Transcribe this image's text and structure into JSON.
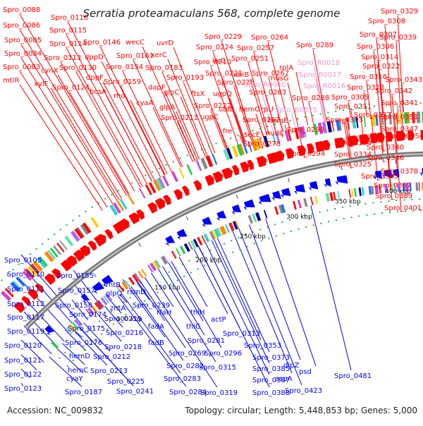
{
  "title": "Serratia proteamaculans 568, complete genome",
  "footer": {
    "accession": "Accession: NC_009832",
    "summary": "Topology: circular; Length: 5,448,853 bp; Genes: 5,000"
  },
  "colors": {
    "forward": "#ff0000",
    "reverse": "#0000ee",
    "rna": "#ee99cc",
    "backbone": "#999999",
    "gc_tick": "#22aa44"
  },
  "scale_ticks": [
    "100 kbp",
    "150 kbp",
    "200 kbp",
    "250 kbp",
    "300 kbp",
    "350 kbp",
    "400 kbp",
    "450 kbp",
    "500 kbp",
    "550 kbp"
  ],
  "top_labels": [
    {
      "t": "Spro_0088",
      "kind": "f"
    },
    {
      "t": "Spro_0116",
      "kind": "f"
    },
    {
      "t": "Spro_0086",
      "kind": "f"
    },
    {
      "t": "Spro_0115",
      "kind": "f"
    },
    {
      "t": "Spro_0085",
      "kind": "f"
    },
    {
      "t": "Spro_0114",
      "kind": "f"
    },
    {
      "t": "Spro_0146",
      "kind": "f"
    },
    {
      "t": "wecC",
      "kind": "f"
    },
    {
      "t": "uvrD",
      "kind": "f"
    },
    {
      "t": "Spro_0084",
      "kind": "f"
    },
    {
      "t": "Spro_0113",
      "kind": "f"
    },
    {
      "t": "dppD",
      "kind": "f"
    },
    {
      "t": "Spro_0161",
      "kind": "f"
    },
    {
      "t": "xerC",
      "kind": "f"
    },
    {
      "t": "Spro_0083",
      "kind": "f"
    },
    {
      "t": "cynX",
      "kind": "f"
    },
    {
      "t": "Spro_0130",
      "kind": "f"
    },
    {
      "t": "dppF",
      "kind": "f"
    },
    {
      "t": "Spro_0154",
      "kind": "f"
    },
    {
      "t": "Spro_0183",
      "kind": "f"
    },
    {
      "t": "mtlR",
      "kind": "f"
    },
    {
      "t": "xylF",
      "kind": "f"
    },
    {
      "t": "Spro_0124",
      "kind": "f"
    },
    {
      "t": "bcsA",
      "kind": "f"
    },
    {
      "t": "Spro_0159",
      "kind": "f"
    },
    {
      "t": "dapF",
      "kind": "f"
    },
    {
      "t": "rho",
      "kind": "f"
    },
    {
      "t": "cyaA",
      "kind": "f"
    },
    {
      "t": "Spro_0193",
      "kind": "f"
    },
    {
      "t": "glpC",
      "kind": "f"
    },
    {
      "t": "glpA",
      "kind": "f"
    },
    {
      "t": "Spro_0211",
      "kind": "f"
    },
    {
      "t": "Spro_0229",
      "kind": "f"
    },
    {
      "t": "Spro_0264",
      "kind": "f"
    },
    {
      "t": "Spro_0224",
      "kind": "f"
    },
    {
      "t": "Spro_0257",
      "kind": "f"
    },
    {
      "t": "Spro_0251",
      "kind": "f"
    },
    {
      "t": "Spro_0210",
      "kind": "f"
    },
    {
      "t": "livG",
      "kind": "f"
    },
    {
      "t": "Spro_0221",
      "kind": "f"
    },
    {
      "t": "Spro_0228",
      "kind": "f"
    },
    {
      "t": "ftsX",
      "kind": "f"
    },
    {
      "t": "ugpQ",
      "kind": "f"
    },
    {
      "t": "Spro_0222",
      "kind": "f"
    },
    {
      "t": "ugpC",
      "kind": "f"
    },
    {
      "t": "ubiB",
      "kind": "f"
    },
    {
      "t": "Spro_0267",
      "kind": "f"
    },
    {
      "t": "Spro_0263",
      "kind": "f"
    },
    {
      "t": "ubiE",
      "kind": "f"
    },
    {
      "t": "hemG",
      "kind": "f"
    },
    {
      "t": "rpU",
      "kind": "f"
    },
    {
      "t": "fre",
      "kind": "f"
    },
    {
      "t": "Spro_0262",
      "kind": "f"
    },
    {
      "t": "secE",
      "kind": "f"
    },
    {
      "t": "Spro_0278",
      "kind": "f"
    },
    {
      "t": "nusG",
      "kind": "f"
    },
    {
      "t": "rplA",
      "kind": "f"
    },
    {
      "t": "Spro_0289",
      "kind": "f"
    },
    {
      "t": "Spro_R0018",
      "kind": "r"
    },
    {
      "t": "Spro_R0017",
      "kind": "r"
    },
    {
      "t": "Spro_R0010",
      "kind": "r"
    },
    {
      "t": "Spro_R0016",
      "kind": "r"
    },
    {
      "t": "Spro_0288",
      "kind": "f"
    },
    {
      "t": "Spro_R0015",
      "kind": "r"
    },
    {
      "t": "hemE",
      "kind": "f"
    },
    {
      "t": "nudC",
      "kind": "f"
    },
    {
      "t": "Spro_0298",
      "kind": "f"
    },
    {
      "t": "Spro_0294",
      "kind": "f"
    },
    {
      "t": "Spro_0329",
      "kind": "f"
    },
    {
      "t": "Spro_0308",
      "kind": "f"
    },
    {
      "t": "Spro_0307",
      "kind": "f"
    },
    {
      "t": "Spro_0339",
      "kind": "f"
    },
    {
      "t": "Spro_0306",
      "kind": "f"
    },
    {
      "t": "Spro_0314",
      "kind": "f"
    },
    {
      "t": "Spro_0322",
      "kind": "f"
    },
    {
      "t": "Spro_0316",
      "kind": "f"
    },
    {
      "t": "Spro_0343",
      "kind": "f"
    },
    {
      "t": "Spro_0323",
      "kind": "f"
    },
    {
      "t": "Spro_0342",
      "kind": "f"
    },
    {
      "t": "Spro_0305",
      "kind": "f"
    },
    {
      "t": "Spro_0341",
      "kind": "f"
    },
    {
      "t": "Spro_0311",
      "kind": "f"
    },
    {
      "t": "Spro_0337",
      "kind": "f"
    },
    {
      "t": "Spro_0351",
      "kind": "f"
    },
    {
      "t": "Spro_0303",
      "kind": "f"
    },
    {
      "t": "Spro_0347",
      "kind": "f"
    },
    {
      "t": "Spro_0338",
      "kind": "f"
    },
    {
      "t": "Spro_0354",
      "kind": "f"
    },
    {
      "t": "Spro_0304",
      "kind": "f"
    },
    {
      "t": "Spro_0340",
      "kind": "f"
    },
    {
      "t": "Spro_0346",
      "kind": "f"
    },
    {
      "t": "Spro_0325",
      "kind": "f"
    },
    {
      "t": "Spro_0334",
      "kind": "f"
    },
    {
      "t": "Spro_0378",
      "kind": "f"
    },
    {
      "t": "Spro_0345",
      "kind": "f"
    },
    {
      "t": "Spro_0367",
      "kind": "f"
    },
    {
      "t": "Spro_0389",
      "kind": "f"
    },
    {
      "t": "Spro_0401",
      "kind": "f"
    }
  ],
  "bottom_labels": [
    {
      "t": "Spro_0105"
    },
    {
      "t": "Spro_0110"
    },
    {
      "t": "Spro_0111"
    },
    {
      "t": "Spro_0112"
    },
    {
      "t": "Spro_0117"
    },
    {
      "t": "Spro_0119"
    },
    {
      "t": "Spro_0120"
    },
    {
      "t": "Spro_0121"
    },
    {
      "t": "Spro_0122"
    },
    {
      "t": "Spro_0123"
    },
    {
      "t": "Spro_0155"
    },
    {
      "t": "Spro_0157"
    },
    {
      "t": "Spro_0158"
    },
    {
      "t": "Spro_0174"
    },
    {
      "t": "Spro_0175"
    },
    {
      "t": "Spro_0176"
    },
    {
      "t": "hemD"
    },
    {
      "t": "hemC"
    },
    {
      "t": "cyaY"
    },
    {
      "t": "Spro_0187"
    },
    {
      "t": "rhtB"
    },
    {
      "t": "glpQ"
    },
    {
      "t": "rsmD"
    },
    {
      "t": "zntA"
    },
    {
      "t": "Spro_0215"
    },
    {
      "t": "Spro_0216"
    },
    {
      "t": "Spro_0218"
    },
    {
      "t": "Spro_0212"
    },
    {
      "t": "Spro_0213"
    },
    {
      "t": "Spro_0225"
    },
    {
      "t": "Spro_0241"
    },
    {
      "t": "Spro_0239"
    },
    {
      "t": "rfaH"
    },
    {
      "t": "fadA"
    },
    {
      "t": "fadB"
    },
    {
      "t": "Spro_0269"
    },
    {
      "t": "Spro_0282"
    },
    {
      "t": "Spro_0283"
    },
    {
      "t": "Spro_0284"
    },
    {
      "t": "thiH"
    },
    {
      "t": "thiG"
    },
    {
      "t": "Spro_0281"
    },
    {
      "t": "Spro_0296"
    },
    {
      "t": "Spro_0315"
    },
    {
      "t": "Spro_0319"
    },
    {
      "t": "actP"
    },
    {
      "t": "Spro_0313"
    },
    {
      "t": "Spro_0353"
    },
    {
      "t": "Spro_0373"
    },
    {
      "t": "Spro_0385"
    },
    {
      "t": "Spro_0387"
    },
    {
      "t": "Spro_0388"
    },
    {
      "t": "dipZ"
    },
    {
      "t": "aspA"
    },
    {
      "t": "psd"
    },
    {
      "t": "Spro_0423"
    },
    {
      "t": "Spro_0481"
    }
  ]
}
